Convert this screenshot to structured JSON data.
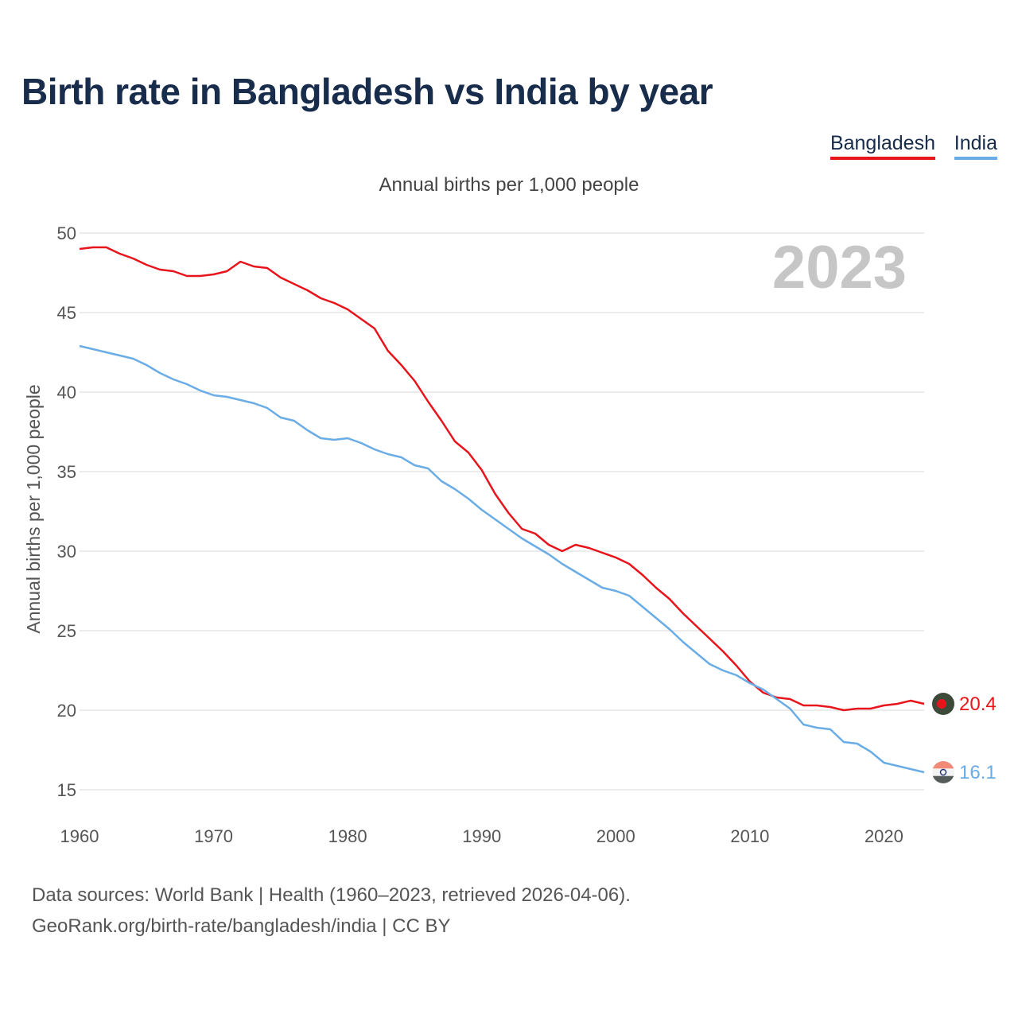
{
  "title": "Birth rate in Bangladesh vs India by year",
  "legend": {
    "bangladesh": "Bangladesh",
    "india": "India"
  },
  "sources": {
    "line1": "Data sources: World Bank | Health (1960–2023, retrieved 2026-04-06).",
    "line2": "GeoRank.org/birth-rate/bangladesh/india | CC BY"
  },
  "colors": {
    "bangladesh": "#e8141b",
    "india": "#6aace6",
    "title": "#182c4b",
    "grid": "#e6e6e6"
  },
  "chart_data": {
    "type": "line",
    "title": "Birth rate in Bangladesh vs India by year",
    "subtitle": "Annual births per 1,000 people",
    "ylabel": "Annual births per 1,000 people",
    "xlabel": "",
    "watermark_year": "2023",
    "xlim": [
      1960,
      2023
    ],
    "ylim": [
      15,
      50
    ],
    "x_ticks": [
      1960,
      1970,
      1980,
      1990,
      2000,
      2010,
      2020
    ],
    "y_ticks": [
      15,
      20,
      25,
      30,
      35,
      40,
      45,
      50
    ],
    "grid": true,
    "legend_position": "top-right",
    "x": [
      1960,
      1961,
      1962,
      1963,
      1964,
      1965,
      1966,
      1967,
      1968,
      1969,
      1970,
      1971,
      1972,
      1973,
      1974,
      1975,
      1976,
      1977,
      1978,
      1979,
      1980,
      1981,
      1982,
      1983,
      1984,
      1985,
      1986,
      1987,
      1988,
      1989,
      1990,
      1991,
      1992,
      1993,
      1994,
      1995,
      1996,
      1997,
      1998,
      1999,
      2000,
      2001,
      2002,
      2003,
      2004,
      2005,
      2006,
      2007,
      2008,
      2009,
      2010,
      2011,
      2012,
      2013,
      2014,
      2015,
      2016,
      2017,
      2018,
      2019,
      2020,
      2021,
      2022,
      2023
    ],
    "series": [
      {
        "name": "Bangladesh",
        "key": "bangladesh",
        "end_label": "20.4",
        "values": [
          49.0,
          49.1,
          49.1,
          48.7,
          48.4,
          48.0,
          47.7,
          47.6,
          47.3,
          47.3,
          47.4,
          47.6,
          48.2,
          47.9,
          47.8,
          47.2,
          46.8,
          46.4,
          45.9,
          45.6,
          45.2,
          44.6,
          44.0,
          42.6,
          41.7,
          40.7,
          39.4,
          38.2,
          36.9,
          36.2,
          35.1,
          33.6,
          32.4,
          31.4,
          31.1,
          30.4,
          30.0,
          30.4,
          30.2,
          29.9,
          29.6,
          29.2,
          28.5,
          27.7,
          27.0,
          26.1,
          25.3,
          24.5,
          23.7,
          22.8,
          21.8,
          21.1,
          20.8,
          20.7,
          20.3,
          20.3,
          20.2,
          20.0,
          20.1,
          20.1,
          20.3,
          20.4,
          20.6,
          20.4
        ]
      },
      {
        "name": "India",
        "key": "india",
        "end_label": "16.1",
        "values": [
          42.9,
          42.7,
          42.5,
          42.3,
          42.1,
          41.7,
          41.2,
          40.8,
          40.5,
          40.1,
          39.8,
          39.7,
          39.5,
          39.3,
          39.0,
          38.4,
          38.2,
          37.6,
          37.1,
          37.0,
          37.1,
          36.8,
          36.4,
          36.1,
          35.9,
          35.4,
          35.2,
          34.4,
          33.9,
          33.3,
          32.6,
          32.0,
          31.4,
          30.8,
          30.3,
          29.8,
          29.2,
          28.7,
          28.2,
          27.7,
          27.5,
          27.2,
          26.5,
          25.8,
          25.1,
          24.3,
          23.6,
          22.9,
          22.5,
          22.2,
          21.7,
          21.3,
          20.7,
          20.1,
          19.1,
          18.9,
          18.8,
          18.0,
          17.9,
          17.4,
          16.7,
          16.5,
          16.3,
          16.1
        ]
      }
    ]
  }
}
